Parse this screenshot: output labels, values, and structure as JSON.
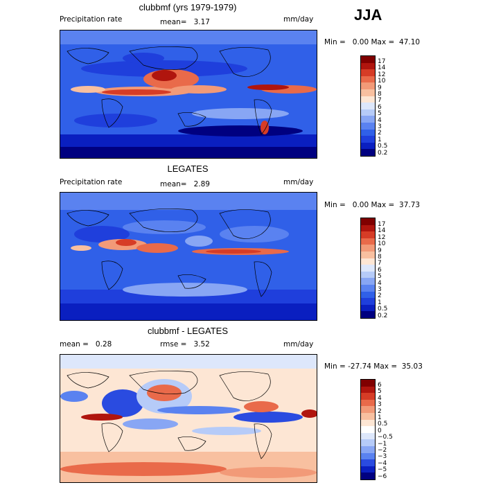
{
  "season": "JJA",
  "colors": {
    "precip": [
      "#000080",
      "#0a1fc0",
      "#1f3fdc",
      "#3060e8",
      "#5a82f0",
      "#88a6f4",
      "#b6cbf8",
      "#dde7fb",
      "#fde6d4",
      "#f8c0a0",
      "#f29a78",
      "#e96a4a",
      "#d63c26",
      "#b0150e",
      "#800000"
    ],
    "diff": [
      "#000080",
      "#0a1fc0",
      "#2a4be0",
      "#5a82f0",
      "#88a6f4",
      "#b6cbf8",
      "#dde7fb",
      "#ffffff",
      "#fde6d4",
      "#f8c0a0",
      "#f29a78",
      "#e96a4a",
      "#d63c26",
      "#b0150e",
      "#800000"
    ]
  },
  "panels": [
    {
      "title": "clubbmf (yrs 1979-1979)",
      "variable": "Precipitation rate",
      "stat1": "mean=   3.17",
      "units": "mm/day",
      "minmax": "Min =   0.00 Max =  47.10",
      "levels": [
        "17",
        "14",
        "12",
        "10",
        "9",
        "8",
        "7",
        "6",
        "5",
        "4",
        "3",
        "2",
        "1",
        "0.5",
        "0.2"
      ]
    },
    {
      "title": "LEGATES",
      "variable": "Precipitation rate",
      "stat1": "mean=   2.89",
      "units": "mm/day",
      "minmax": "Min =   0.00 Max =  37.73",
      "levels": [
        "17",
        "14",
        "12",
        "10",
        "9",
        "8",
        "7",
        "6",
        "5",
        "4",
        "3",
        "2",
        "1",
        "0.5",
        "0.2"
      ]
    },
    {
      "title": "clubbmf - LEGATES",
      "variable": "mean =   0.28",
      "stat1": "rmse =   3.52",
      "units": "mm/day",
      "minmax": "Min = -27.74 Max =  35.03",
      "levels": [
        "6",
        "5",
        "4",
        "3",
        "2",
        "1",
        "0.5",
        "0",
        "−0.5",
        "−1",
        "−2",
        "−3",
        "−4",
        "−5",
        "−6"
      ]
    }
  ]
}
